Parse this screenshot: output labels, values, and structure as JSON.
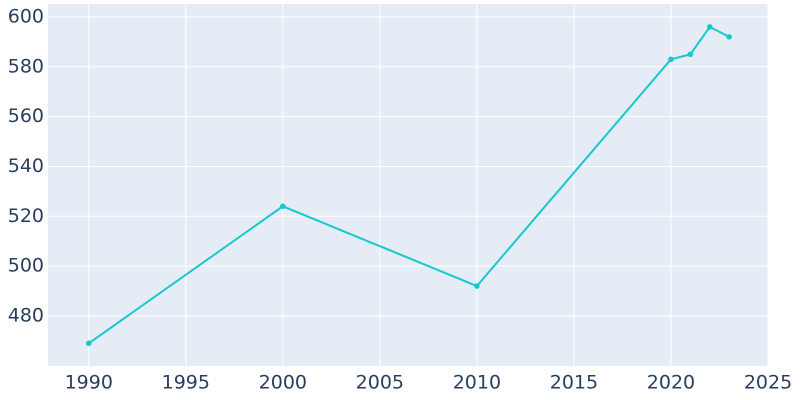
{
  "chart_data": {
    "type": "line",
    "x": [
      1990,
      2000,
      2010,
      2020,
      2021,
      2022,
      2023
    ],
    "series": [
      {
        "color": "#17c9cc",
        "values": [
          469,
          524,
          492,
          583,
          585,
          596,
          592
        ]
      }
    ],
    "xlim": [
      1987.9,
      2025
    ],
    "xticks": [
      1990,
      1995,
      2000,
      2005,
      2010,
      2015,
      2020,
      2025
    ],
    "ylim": [
      459.9,
      605.2
    ],
    "yticks": [
      480,
      500,
      520,
      540,
      560,
      580,
      600
    ],
    "grid": true
  }
}
